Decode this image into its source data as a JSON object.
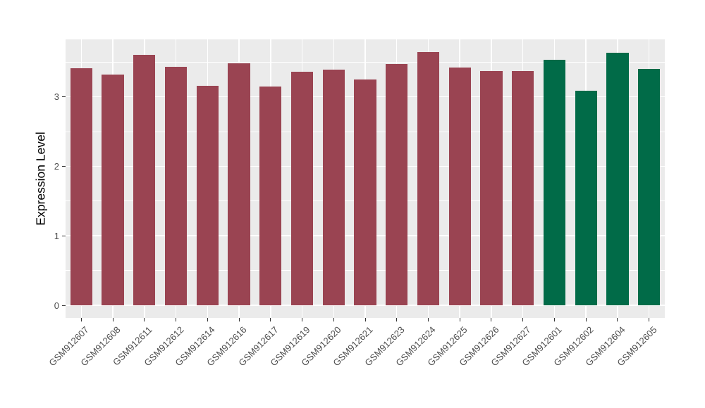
{
  "figure": {
    "background": "#FFFFFF",
    "panel_background": "#EBEBEB",
    "gridline_color": "#FFFFFF",
    "axis_text_color": "#4D4D4D",
    "axis_title_color": "#000000",
    "tick_mark_color": "#333333"
  },
  "chart_data": {
    "type": "bar",
    "title": "",
    "xlabel": "",
    "ylabel": "Expression Level",
    "categories": [
      "GSM912607",
      "GSM912608",
      "GSM912611",
      "GSM912612",
      "GSM912614",
      "GSM912616",
      "GSM912617",
      "GSM912619",
      "GSM912620",
      "GSM912621",
      "GSM912623",
      "GSM912624",
      "GSM912625",
      "GSM912626",
      "GSM912627",
      "GSM912601",
      "GSM912602",
      "GSM912604",
      "GSM912605"
    ],
    "values": [
      3.41,
      3.32,
      3.6,
      3.43,
      3.16,
      3.48,
      3.15,
      3.36,
      3.39,
      3.25,
      3.47,
      3.64,
      3.42,
      3.37,
      3.37,
      3.53,
      3.09,
      3.63,
      3.4
    ],
    "groups": [
      "maroon",
      "maroon",
      "maroon",
      "maroon",
      "maroon",
      "maroon",
      "maroon",
      "maroon",
      "maroon",
      "maroon",
      "maroon",
      "maroon",
      "maroon",
      "maroon",
      "maroon",
      "green",
      "green",
      "green",
      "green"
    ],
    "group_colors": {
      "maroon": "#9A4452",
      "green": "#016B48"
    },
    "yticks": [
      "0",
      "1",
      "2",
      "3"
    ],
    "ytick_values": [
      0,
      1,
      2,
      3
    ],
    "yminor_values": [
      0.5,
      1.5,
      2.5,
      3.5
    ],
    "ylim": [
      -0.182,
      3.826
    ],
    "bar_width_frac": 0.7,
    "x_tick_angle": -45,
    "legend": "none",
    "grid": "white major+minor horizontal, major vertical at category centers"
  }
}
